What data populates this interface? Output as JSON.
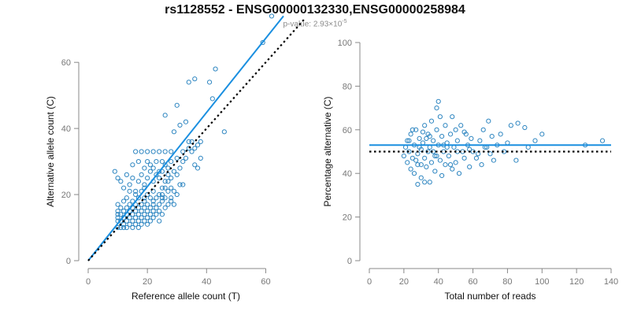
{
  "header": {
    "title": "rs1128552 - ENSG00000132330,ENSG00000258984",
    "pvalue_prefix": "p-value: 2.93×10",
    "pvalue_exponent": "-5"
  },
  "colors": {
    "points": "#2e86c1",
    "fit": "#1a8fe0",
    "reference": "#000000",
    "axis": "#888888"
  },
  "chart_data": [
    {
      "type": "scatter",
      "xlabel": "Reference allele count (T)",
      "ylabel": "Alternative allele count (C)",
      "xlim": [
        0,
        66
      ],
      "ylim": [
        0,
        66
      ],
      "xticks": [
        0,
        20,
        40,
        60
      ],
      "yticks": [
        0,
        20,
        40,
        60
      ],
      "grid": false,
      "fit_line": {
        "from": [
          0,
          0
        ],
        "to": [
          66,
          74
        ]
      },
      "reference_line": {
        "from": [
          0,
          0
        ],
        "to": [
          73,
          73
        ]
      },
      "points": [
        [
          10,
          10
        ],
        [
          10,
          12
        ],
        [
          10,
          13
        ],
        [
          10,
          14
        ],
        [
          10,
          15
        ],
        [
          10,
          17
        ],
        [
          11,
          10
        ],
        [
          11,
          12
        ],
        [
          11,
          14
        ],
        [
          11,
          16
        ],
        [
          12,
          10
        ],
        [
          12,
          11
        ],
        [
          12,
          13
        ],
        [
          12,
          15
        ],
        [
          12,
          18
        ],
        [
          13,
          10
        ],
        [
          13,
          12
        ],
        [
          13,
          14
        ],
        [
          13,
          16
        ],
        [
          13,
          19
        ],
        [
          14,
          11
        ],
        [
          14,
          13
        ],
        [
          14,
          15
        ],
        [
          14,
          17
        ],
        [
          14,
          21
        ],
        [
          15,
          10
        ],
        [
          15,
          12
        ],
        [
          15,
          14
        ],
        [
          15,
          16
        ],
        [
          15,
          18
        ],
        [
          16,
          11
        ],
        [
          16,
          13
        ],
        [
          16,
          15
        ],
        [
          16,
          17
        ],
        [
          16,
          20
        ],
        [
          17,
          10
        ],
        [
          17,
          12
        ],
        [
          17,
          14
        ],
        [
          17,
          16
        ],
        [
          17,
          19
        ],
        [
          18,
          11
        ],
        [
          18,
          13
        ],
        [
          18,
          15
        ],
        [
          18,
          17
        ],
        [
          18,
          21
        ],
        [
          19,
          12
        ],
        [
          19,
          14
        ],
        [
          19,
          16
        ],
        [
          19,
          18
        ],
        [
          19,
          22
        ],
        [
          20,
          11
        ],
        [
          20,
          13
        ],
        [
          20,
          15
        ],
        [
          20,
          17
        ],
        [
          20,
          20
        ],
        [
          21,
          12
        ],
        [
          21,
          14
        ],
        [
          21,
          16
        ],
        [
          21,
          19
        ],
        [
          22,
          13
        ],
        [
          22,
          15
        ],
        [
          22,
          18
        ],
        [
          22,
          21
        ],
        [
          23,
          14
        ],
        [
          23,
          16
        ],
        [
          23,
          19
        ],
        [
          24,
          12
        ],
        [
          24,
          15
        ],
        [
          24,
          17
        ],
        [
          24,
          20
        ],
        [
          25,
          14
        ],
        [
          25,
          18
        ],
        [
          25,
          22
        ],
        [
          26,
          16
        ],
        [
          26,
          19
        ],
        [
          27,
          17
        ],
        [
          27,
          21
        ],
        [
          28,
          18
        ],
        [
          28,
          22
        ],
        [
          29,
          17
        ],
        [
          9,
          27
        ],
        [
          10,
          25
        ],
        [
          11,
          24
        ],
        [
          12,
          22
        ],
        [
          13,
          26
        ],
        [
          14,
          23
        ],
        [
          15,
          25
        ],
        [
          16,
          21
        ],
        [
          17,
          24
        ],
        [
          18,
          26
        ],
        [
          19,
          23
        ],
        [
          20,
          25
        ],
        [
          21,
          27
        ],
        [
          22,
          24
        ],
        [
          23,
          26
        ],
        [
          24,
          25
        ],
        [
          25,
          27
        ],
        [
          26,
          24
        ],
        [
          27,
          26
        ],
        [
          21,
          29
        ],
        [
          22,
          28
        ],
        [
          23,
          30
        ],
        [
          24,
          27
        ],
        [
          25,
          30
        ],
        [
          26,
          29
        ],
        [
          27,
          28
        ],
        [
          28,
          30
        ],
        [
          19,
          28
        ],
        [
          20,
          30
        ],
        [
          17,
          30
        ],
        [
          16,
          33
        ],
        [
          18,
          33
        ],
        [
          20,
          33
        ],
        [
          22,
          33
        ],
        [
          24,
          33
        ],
        [
          26,
          33
        ],
        [
          28,
          33
        ],
        [
          15,
          29
        ],
        [
          25,
          20
        ],
        [
          26,
          22
        ],
        [
          27,
          24
        ],
        [
          28,
          25
        ],
        [
          29,
          27
        ],
        [
          30,
          26
        ],
        [
          31,
          23
        ],
        [
          32,
          23
        ],
        [
          30,
          20
        ],
        [
          29,
          21
        ],
        [
          31,
          28
        ],
        [
          32,
          30
        ],
        [
          33,
          31
        ],
        [
          34,
          34
        ],
        [
          35,
          36
        ],
        [
          36,
          29
        ],
        [
          37,
          28
        ],
        [
          38,
          36
        ],
        [
          36,
          34
        ],
        [
          35,
          33
        ],
        [
          32,
          33
        ],
        [
          30,
          31
        ],
        [
          29,
          39
        ],
        [
          31,
          41
        ],
        [
          33,
          42
        ],
        [
          30,
          47
        ],
        [
          34,
          54
        ],
        [
          36,
          55
        ],
        [
          41,
          54
        ],
        [
          43,
          58
        ],
        [
          42,
          49
        ],
        [
          46,
          39
        ],
        [
          26,
          44
        ],
        [
          59,
          66
        ],
        [
          62,
          74
        ],
        [
          38,
          31
        ],
        [
          34,
          36
        ],
        [
          37,
          35
        ],
        [
          28,
          19
        ],
        [
          25,
          19
        ],
        [
          19,
          19
        ],
        [
          22,
          17
        ]
      ]
    },
    {
      "type": "scatter",
      "xlabel": "Total number of reads",
      "ylabel": "Percentage alternative (C)",
      "xlim": [
        0,
        140
      ],
      "ylim": [
        0,
        100
      ],
      "xticks": [
        0,
        20,
        40,
        60,
        80,
        100,
        120,
        140
      ],
      "yticks": [
        0,
        20,
        40,
        60,
        80,
        100
      ],
      "grid": false,
      "fit_line": {
        "y": 53
      },
      "reference_line": {
        "y": 50
      },
      "points": [
        [
          20,
          48
        ],
        [
          21,
          52
        ],
        [
          22,
          45
        ],
        [
          22,
          55
        ],
        [
          23,
          50
        ],
        [
          24,
          42
        ],
        [
          24,
          58
        ],
        [
          25,
          47
        ],
        [
          26,
          53
        ],
        [
          26,
          40
        ],
        [
          27,
          60
        ],
        [
          28,
          49
        ],
        [
          28,
          44
        ],
        [
          29,
          56
        ],
        [
          30,
          51
        ],
        [
          30,
          38
        ],
        [
          31,
          54
        ],
        [
          32,
          47
        ],
        [
          32,
          62
        ],
        [
          33,
          43
        ],
        [
          34,
          58
        ],
        [
          34,
          50
        ],
        [
          35,
          36
        ],
        [
          35,
          52
        ],
        [
          36,
          45
        ],
        [
          36,
          64
        ],
        [
          37,
          55
        ],
        [
          38,
          41
        ],
        [
          38,
          48
        ],
        [
          39,
          60
        ],
        [
          39,
          70
        ],
        [
          40,
          73
        ],
        [
          40,
          53
        ],
        [
          41,
          46
        ],
        [
          42,
          57
        ],
        [
          42,
          39
        ],
        [
          43,
          50
        ],
        [
          44,
          62
        ],
        [
          44,
          44
        ],
        [
          45,
          54
        ],
        [
          46,
          48
        ],
        [
          47,
          58
        ],
        [
          48,
          42
        ],
        [
          48,
          66
        ],
        [
          49,
          52
        ],
        [
          50,
          45
        ],
        [
          50,
          60
        ],
        [
          51,
          55
        ],
        [
          52,
          40
        ],
        [
          53,
          62
        ],
        [
          54,
          50
        ],
        [
          55,
          47
        ],
        [
          56,
          58
        ],
        [
          57,
          53
        ],
        [
          58,
          43
        ],
        [
          59,
          56
        ],
        [
          60,
          50
        ],
        [
          62,
          47
        ],
        [
          64,
          55
        ],
        [
          65,
          44
        ],
        [
          66,
          60
        ],
        [
          68,
          52
        ],
        [
          69,
          64
        ],
        [
          70,
          49
        ],
        [
          71,
          57
        ],
        [
          72,
          46
        ],
        [
          74,
          53
        ],
        [
          76,
          58
        ],
        [
          78,
          50
        ],
        [
          80,
          54
        ],
        [
          82,
          62
        ],
        [
          85,
          46
        ],
        [
          86,
          63
        ],
        [
          90,
          61
        ],
        [
          92,
          52
        ],
        [
          96,
          55
        ],
        [
          100,
          58
        ],
        [
          125,
          53
        ],
        [
          135,
          55
        ],
        [
          28,
          35
        ],
        [
          31,
          59
        ],
        [
          33,
          56
        ],
        [
          37,
          50
        ],
        [
          41,
          66
        ],
        [
          45,
          52
        ],
        [
          30,
          44
        ],
        [
          35,
          57
        ],
        [
          39,
          48
        ],
        [
          43,
          53
        ],
        [
          47,
          44
        ],
        [
          51,
          50
        ],
        [
          55,
          59
        ],
        [
          58,
          51
        ],
        [
          63,
          49
        ],
        [
          67,
          52
        ],
        [
          23,
          55
        ],
        [
          25,
          60
        ],
        [
          27,
          46
        ],
        [
          29,
          52
        ],
        [
          32,
          36
        ]
      ]
    }
  ]
}
